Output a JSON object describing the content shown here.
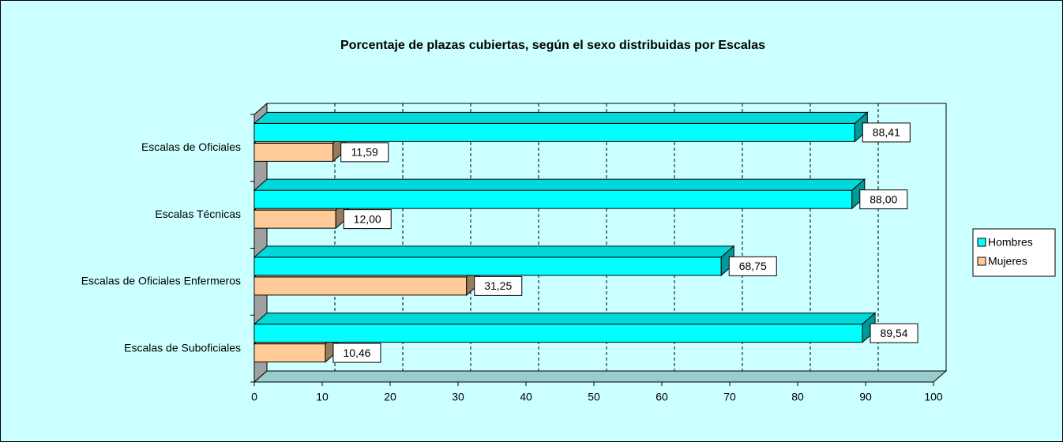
{
  "chart_data": {
    "type": "bar",
    "orientation": "horizontal",
    "title": "Porcentaje de plazas cubiertas, según el sexo distribuidas por Escalas",
    "categories": [
      "Escalas de Oficiales",
      "Escalas  Técnicas",
      "Escalas de Oficiales Enfermeros",
      "Escalas de Suboficiales"
    ],
    "series": [
      {
        "name": "Hombres",
        "color": "#00ffff",
        "values": [
          88.41,
          88.0,
          68.75,
          89.54
        ],
        "value_labels": [
          "88,41",
          "88,00",
          "68,75",
          "89,54"
        ]
      },
      {
        "name": "Mujeres",
        "color": "#ffcc99",
        "values": [
          11.59,
          12.0,
          31.25,
          10.46
        ],
        "value_labels": [
          "11,59",
          "12,00",
          "31,25",
          "10,46"
        ]
      }
    ],
    "xlim": [
      0,
      100
    ],
    "xticks": [
      0,
      10,
      20,
      30,
      40,
      50,
      60,
      70,
      80,
      90,
      100
    ],
    "grid": true,
    "legend": "right"
  }
}
